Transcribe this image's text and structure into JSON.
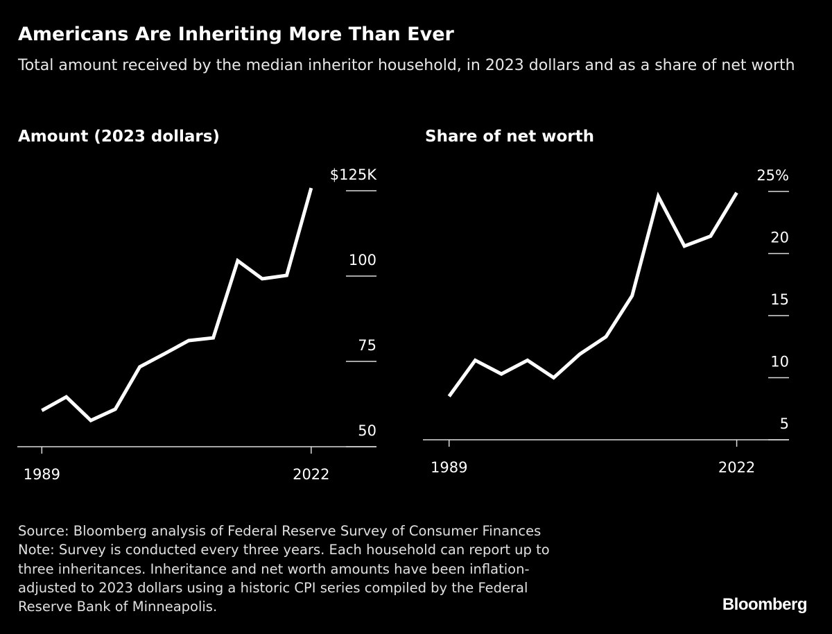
{
  "title": "Americans Are Inheriting More Than Ever",
  "subtitle": "Total amount received by the median inheritor household, in 2023 dollars and as a share of net worth",
  "footer": [
    "Source: Bloomberg analysis of Federal Reserve Survey of Consumer Finances",
    "Note: Survey is conducted every three years. Each household can report up to",
    "three inheritances. Inheritance and net worth amounts have been inflation-",
    "adjusted to 2023 dollars using a historic CPI series compiled by the Federal",
    "Reserve Bank of Minneapolis."
  ],
  "brand": "Bloomberg",
  "chart_data": [
    {
      "type": "line",
      "title": "Amount (2023 dollars)",
      "x": [
        1989,
        1992,
        1995,
        1998,
        2001,
        2004,
        2007,
        2010,
        2013,
        2016,
        2019,
        2022
      ],
      "series": [
        {
          "color": "#ffffff",
          "values": [
            60.6,
            64.6,
            57.7,
            61.0,
            73.4,
            77.2,
            81.1,
            81.9,
            104.5,
            99.2,
            100.2,
            125.8
          ]
        }
      ],
      "xlim": [
        1986,
        2030
      ],
      "xticks": [
        1989,
        2022
      ],
      "ylim": [
        50,
        125
      ],
      "yticks": [
        50,
        75,
        100,
        {
          "value": 125,
          "label": "$125K"
        }
      ]
    },
    {
      "type": "line",
      "title": "Share of net worth",
      "x": [
        1989,
        1992,
        1995,
        1998,
        2001,
        2004,
        2007,
        2010,
        2013,
        2016,
        2019,
        2022
      ],
      "series": [
        {
          "color": "#ffffff",
          "values": [
            8.5,
            11.4,
            10.3,
            11.4,
            10.0,
            11.9,
            13.3,
            16.6,
            24.6,
            20.6,
            21.4,
            24.9
          ]
        }
      ],
      "xlim": [
        1986,
        2028
      ],
      "xticks": [
        1989,
        2022
      ],
      "ylim": [
        5,
        25
      ],
      "yticks": [
        5,
        10,
        15,
        20,
        {
          "value": 25,
          "label": "25%"
        }
      ]
    }
  ]
}
